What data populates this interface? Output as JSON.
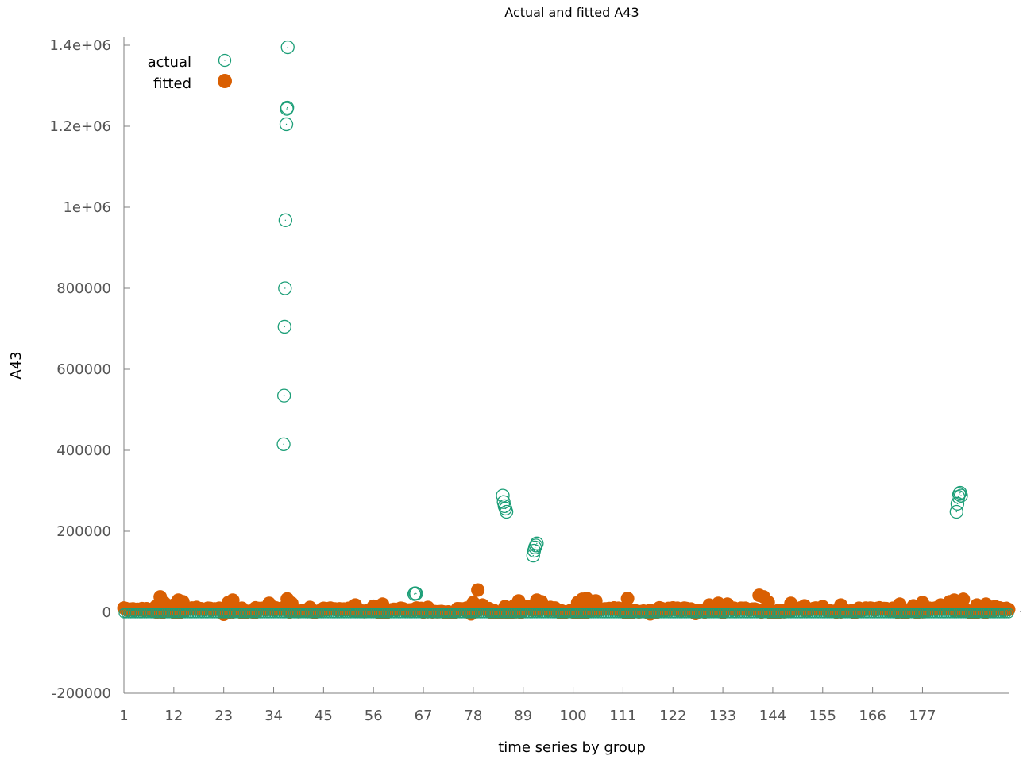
{
  "chart_data": {
    "type": "scatter",
    "title": "Actual and fitted A43",
    "xlabel": "time series by group",
    "ylabel": "A43",
    "xlim": [
      1,
      196
    ],
    "ylim": [
      -200000,
      1400000
    ],
    "x_ticks": [
      "1",
      "12",
      "23",
      "34",
      "45",
      "56",
      "67",
      "78",
      "89",
      "100",
      "111",
      "122",
      "133",
      "144",
      "155",
      "166",
      "177"
    ],
    "y_ticks": [
      "-200000",
      "0",
      "200000",
      "400000",
      "600000",
      "800000",
      "1e+06",
      "1.2e+06",
      "1.4e+06"
    ],
    "grid": false,
    "legend_position": "top-left",
    "series": [
      {
        "name": "actual",
        "marker": "open-circle",
        "color": "#1b9e77",
        "points": [
          [
            36.2,
            415000
          ],
          [
            36.3,
            535000
          ],
          [
            36.4,
            705000
          ],
          [
            36.5,
            800000
          ],
          [
            36.6,
            968000
          ],
          [
            36.8,
            1205000
          ],
          [
            36.9,
            1243000
          ],
          [
            37.0,
            1246000
          ],
          [
            37.1,
            1395000
          ],
          [
            65.0,
            45000
          ],
          [
            65.2,
            47000
          ],
          [
            65.4,
            46000
          ],
          [
            84.5,
            288000
          ],
          [
            84.7,
            272000
          ],
          [
            84.9,
            262000
          ],
          [
            85.1,
            256000
          ],
          [
            85.3,
            248000
          ],
          [
            91.2,
            140000
          ],
          [
            91.4,
            152000
          ],
          [
            91.6,
            160000
          ],
          [
            91.8,
            165000
          ],
          [
            92.0,
            170000
          ],
          [
            184.5,
            248000
          ],
          [
            184.7,
            268000
          ],
          [
            184.9,
            285000
          ],
          [
            185.1,
            292000
          ],
          [
            185.3,
            295000
          ],
          [
            185.5,
            288000
          ]
        ]
      },
      {
        "name": "fitted",
        "marker": "filled-circle",
        "color": "#d95f02",
        "baseline_from": 1,
        "baseline_to": 196,
        "baseline_value": 5000,
        "baseline_step": 0.5,
        "points": [
          [
            2,
            6000
          ],
          [
            5,
            9000
          ],
          [
            8,
            14000
          ],
          [
            9,
            38000
          ],
          [
            10,
            22000
          ],
          [
            12,
            18000
          ],
          [
            13,
            30000
          ],
          [
            14,
            26000
          ],
          [
            17,
            12000
          ],
          [
            20,
            9000
          ],
          [
            22,
            10000
          ],
          [
            23,
            -5000
          ],
          [
            24,
            24000
          ],
          [
            25,
            30000
          ],
          [
            27,
            10000
          ],
          [
            30,
            0
          ],
          [
            33,
            22000
          ],
          [
            35,
            8000
          ],
          [
            37,
            33000
          ],
          [
            38,
            22000
          ],
          [
            42,
            12000
          ],
          [
            46,
            9000
          ],
          [
            52,
            18000
          ],
          [
            56,
            15000
          ],
          [
            58,
            20000
          ],
          [
            62,
            10000
          ],
          [
            66,
            8000
          ],
          [
            68,
            12000
          ],
          [
            75,
            6000
          ],
          [
            77,
            0
          ],
          [
            77.5,
            -4000
          ],
          [
            78,
            24000
          ],
          [
            79,
            55000
          ],
          [
            80,
            18000
          ],
          [
            85,
            14000
          ],
          [
            87,
            16000
          ],
          [
            88,
            28000
          ],
          [
            90,
            14000
          ],
          [
            92,
            30000
          ],
          [
            93,
            26000
          ],
          [
            95,
            12000
          ],
          [
            101,
            24000
          ],
          [
            102,
            32000
          ],
          [
            103,
            34000
          ],
          [
            105,
            28000
          ],
          [
            110,
            10000
          ],
          [
            112,
            34000
          ],
          [
            116,
            2000
          ],
          [
            117,
            -4000
          ],
          [
            120,
            6000
          ],
          [
            123,
            10000
          ],
          [
            126,
            8000
          ],
          [
            127,
            -3000
          ],
          [
            130,
            18000
          ],
          [
            132,
            22000
          ],
          [
            134,
            20000
          ],
          [
            137,
            10000
          ],
          [
            140,
            8000
          ],
          [
            141,
            42000
          ],
          [
            142,
            38000
          ],
          [
            143,
            25000
          ],
          [
            148,
            22000
          ],
          [
            151,
            16000
          ],
          [
            155,
            14000
          ],
          [
            159,
            18000
          ],
          [
            163,
            10000
          ],
          [
            167,
            8000
          ],
          [
            172,
            20000
          ],
          [
            175,
            16000
          ],
          [
            177,
            24000
          ],
          [
            181,
            18000
          ],
          [
            183,
            26000
          ],
          [
            184,
            30000
          ],
          [
            186,
            32000
          ],
          [
            189,
            18000
          ],
          [
            191,
            20000
          ],
          [
            193,
            14000
          ],
          [
            195,
            6000
          ]
        ]
      }
    ]
  }
}
